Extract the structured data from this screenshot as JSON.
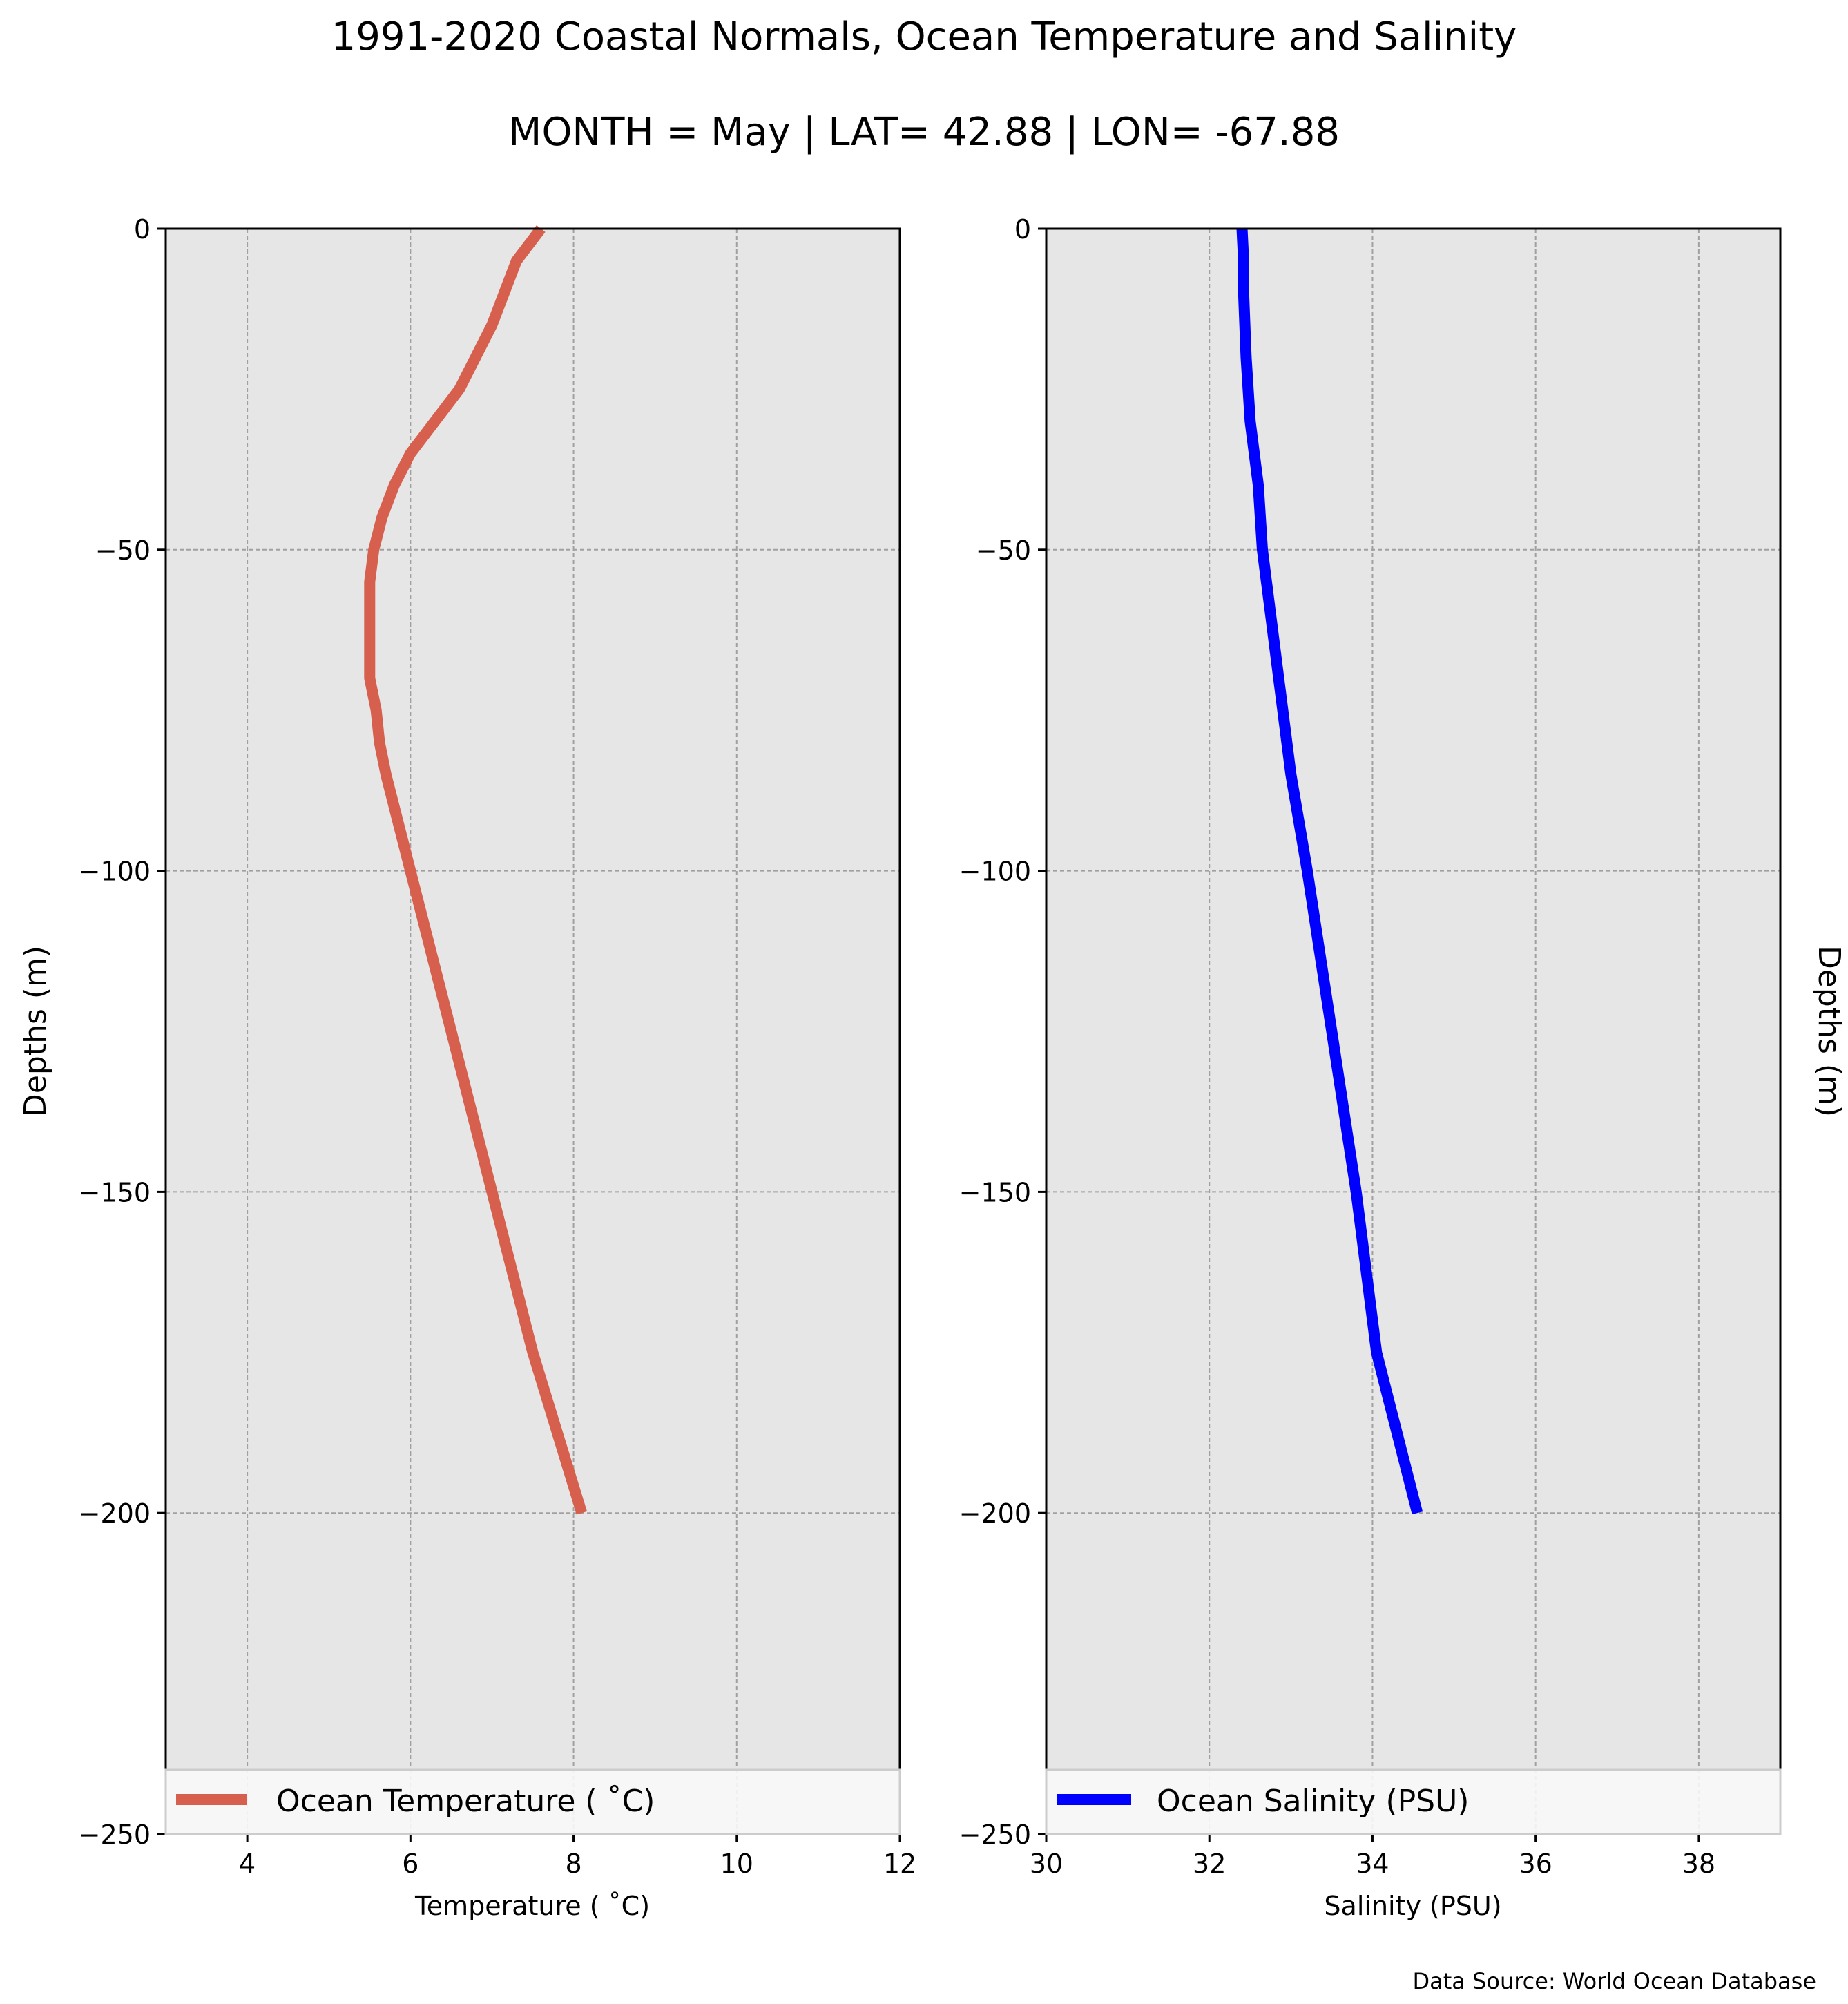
{
  "title": "1991-2020 Coastal Normals, Ocean Temperature and Salinity",
  "subtitle": "MONTH = May | LAT= 42.88 | LON= -67.88",
  "source": "Data Source: World Ocean Database",
  "colors": {
    "temperature": "#d65f4e",
    "salinity": "#0000ff",
    "panel_bg": "#e6e6e6",
    "grid": "#a0a0a0"
  },
  "chart_data": [
    {
      "type": "line",
      "panel": "left",
      "xlabel": "Temperature ($^\\circ$C)",
      "xlabel_text": "Temperature ( ˚C)",
      "ylabel": "Depths (m)",
      "xlim": [
        3,
        12
      ],
      "ylim": [
        -250,
        0
      ],
      "xticks": [
        4,
        6,
        8,
        10,
        12
      ],
      "yticks": [
        0,
        -50,
        -100,
        -150,
        -200,
        -250
      ],
      "grid": true,
      "legend_position": "bottom",
      "series": [
        {
          "name": "Ocean Temperature ( ˚C)",
          "x": [
            7.6,
            7.3,
            7.0,
            6.6,
            6.3,
            6.0,
            5.8,
            5.65,
            5.55,
            5.5,
            5.5,
            5.5,
            5.5,
            5.58,
            5.62,
            5.7,
            6.0,
            6.5,
            7.0,
            7.5,
            8.1
          ],
          "y": [
            0,
            -5,
            -15,
            -25,
            -30,
            -35,
            -40,
            -45,
            -50,
            -55,
            -60,
            -65,
            -70,
            -75,
            -80,
            -85,
            -100,
            -125,
            -150,
            -175,
            -200
          ]
        }
      ]
    },
    {
      "type": "line",
      "panel": "right",
      "xlabel_text": "Salinity (PSU)",
      "ylabel": "Depths (m)",
      "xlim": [
        30,
        39
      ],
      "ylim": [
        -250,
        0
      ],
      "xticks": [
        30,
        32,
        34,
        36,
        38
      ],
      "yticks": [
        0,
        -50,
        -100,
        -150,
        -200,
        -250
      ],
      "grid": true,
      "legend_position": "bottom",
      "series": [
        {
          "name": "Ocean Salinity (PSU)",
          "x": [
            32.4,
            32.42,
            32.42,
            32.45,
            32.5,
            32.55,
            32.6,
            32.65,
            32.7,
            32.75,
            32.8,
            32.9,
            33.0,
            33.2,
            33.5,
            33.8,
            34.05,
            34.55
          ],
          "y": [
            0,
            -5,
            -10,
            -20,
            -30,
            -35,
            -40,
            -50,
            -55,
            -60,
            -65,
            -75,
            -85,
            -100,
            -125,
            -150,
            -175,
            -200
          ]
        }
      ]
    }
  ]
}
